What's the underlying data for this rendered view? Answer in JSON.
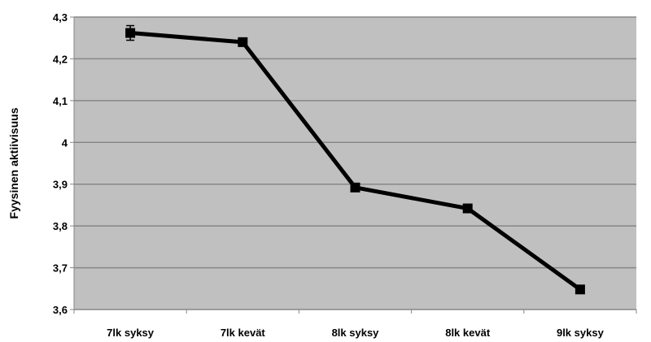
{
  "chart_data": {
    "type": "line",
    "title": "",
    "xlabel": "",
    "ylabel": "Fyysinen aktiivisuus",
    "categories": [
      "7lk syksy",
      "7lk kevät",
      "8lk syksy",
      "8lk kevät",
      "9lk syksy"
    ],
    "series": [
      {
        "values": [
          4.262,
          4.24,
          3.892,
          3.842,
          3.648
        ]
      }
    ],
    "ylim": [
      3.6,
      4.3
    ],
    "yticks": [
      3.6,
      3.7,
      3.8,
      3.9,
      4.0,
      4.1,
      4.2,
      4.3
    ],
    "ytick_labels": [
      "3,6",
      "3,7",
      "3,8",
      "3,9",
      "4",
      "4,1",
      "4,2",
      "4,3"
    ],
    "grid": true,
    "legend": "none",
    "colors": {
      "plot_background": "#c0c0c0",
      "gridline": "#878787",
      "series_line": "#000000",
      "marker": "#000000"
    }
  }
}
